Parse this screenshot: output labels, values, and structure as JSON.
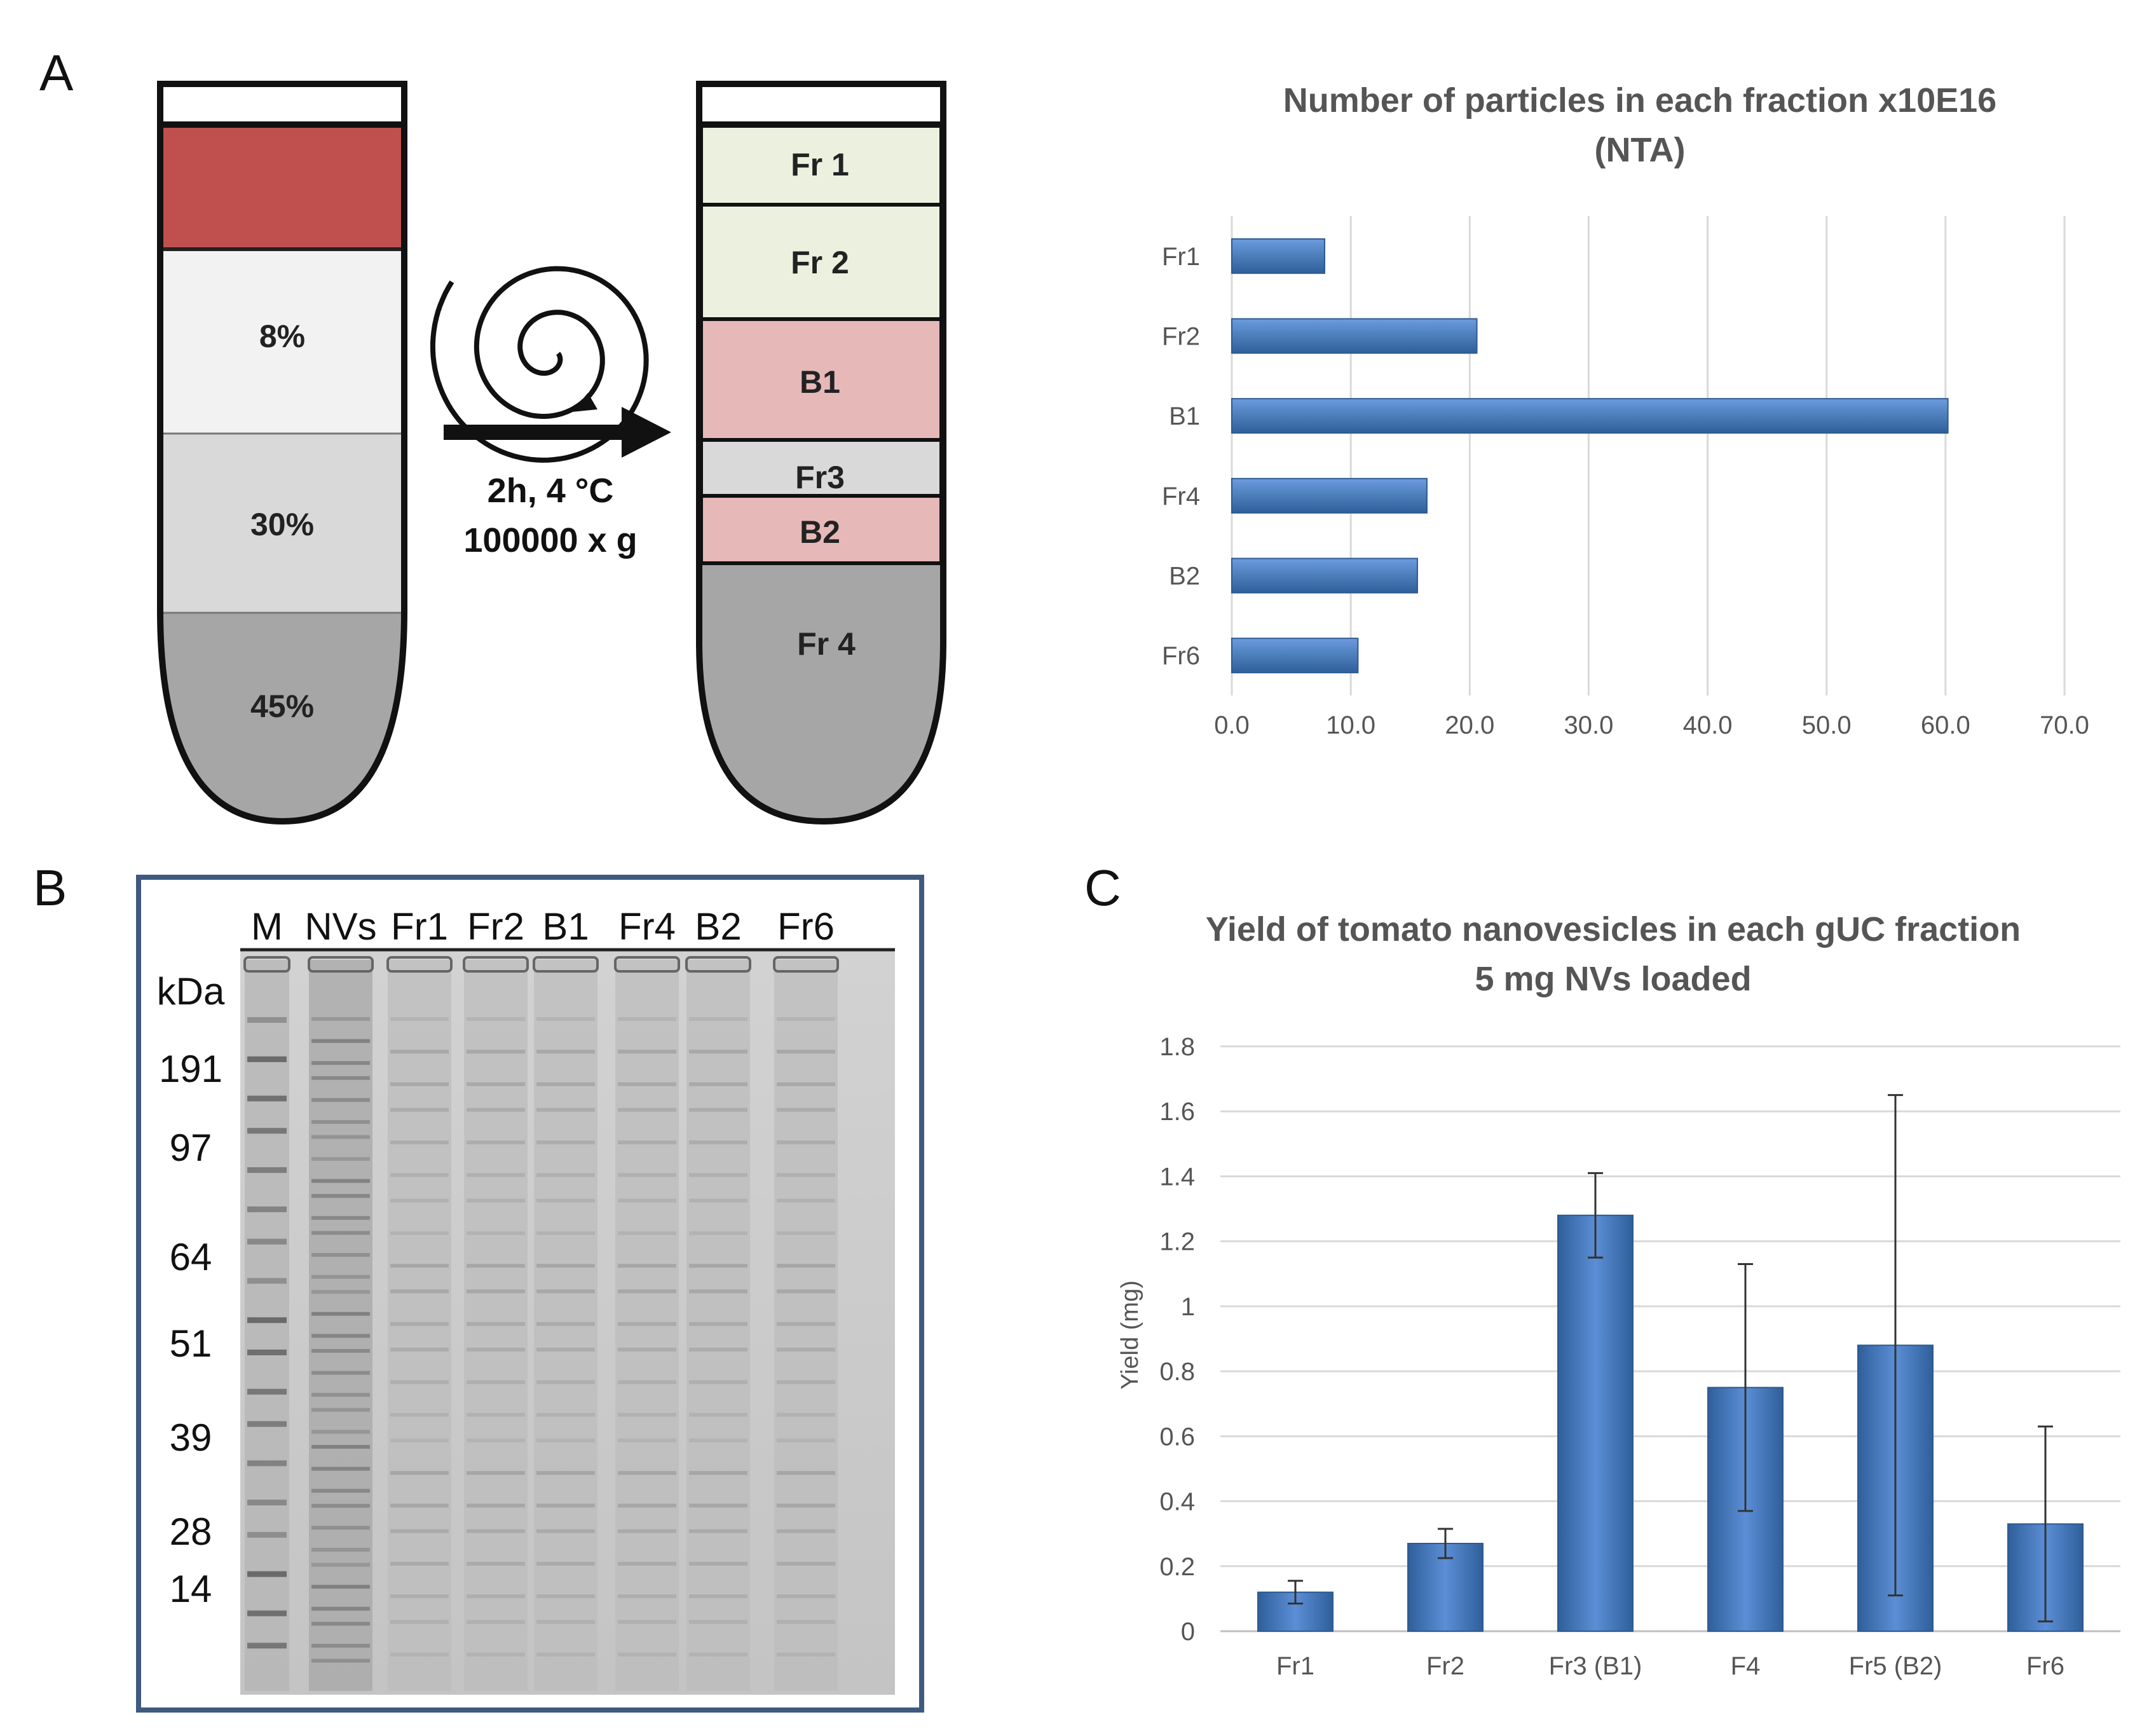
{
  "panel_a": {
    "letter": "A",
    "tube1": {
      "layers": [
        "8%",
        "30%",
        "45%"
      ]
    },
    "tube2": {
      "layers": [
        "Fr 1",
        "Fr 2",
        "B1",
        "Fr3",
        "B2",
        "Fr 4"
      ]
    },
    "conditions": [
      "2h, 4 °C",
      "100000 x g"
    ],
    "spiral_icon": "centrifuge-spiral-icon",
    "colors": {
      "sample": "#c0504d",
      "fraction": "#ebf1de",
      "band": "#e6b9b8",
      "fr3": "#d9d9d9",
      "g8": "#f2f2f2",
      "g30": "#d9d9d9",
      "g45": "#a6a6a6",
      "bar": "#4f81bd"
    }
  },
  "panel_b": {
    "letter": "B",
    "lanes": [
      "M",
      "NVs",
      "Fr1",
      "Fr2",
      "B1",
      "Fr4",
      "B2",
      "Fr6"
    ],
    "unit": "kDa",
    "markers": [
      "191",
      "97",
      "64",
      "51",
      "39",
      "28",
      "14"
    ]
  },
  "panel_c": {
    "letter": "C"
  },
  "chart_data": [
    {
      "type": "bar",
      "orientation": "horizontal",
      "title": "Number of particles in each fraction x10E16 (NTA)",
      "categories": [
        "Fr1",
        "Fr2",
        "B1",
        "Fr4",
        "B2",
        "Fr6"
      ],
      "values": [
        7.8,
        20.6,
        60.2,
        16.4,
        15.6,
        10.6
      ],
      "xlim": [
        0,
        70
      ],
      "ticks": [
        "0.0",
        "10.0",
        "20.0",
        "30.0",
        "40.0",
        "50.0",
        "60.0",
        "70.0"
      ],
      "grid": true
    },
    {
      "type": "bar",
      "title": "Yield of tomato nanovesicles in each gUC fraction 5 mg NVs loaded",
      "title_lines": [
        "Yield of tomato nanovesicles in each gUC fraction",
        "5 mg NVs loaded"
      ],
      "categories": [
        "Fr1",
        "Fr2",
        "Fr3 (B1)",
        "F4",
        "Fr5 (B2)",
        "Fr6"
      ],
      "values": [
        0.12,
        0.27,
        1.28,
        0.75,
        0.88,
        0.33
      ],
      "errors": [
        0.035,
        0.045,
        0.13,
        0.38,
        0.77,
        0.3
      ],
      "ylabel": "Yield (mg)",
      "ylim": [
        0,
        1.8
      ],
      "ticks": [
        "0",
        "0.2",
        "0.4",
        "0.6",
        "0.8",
        "1",
        "1.2",
        "1.4",
        "1.6",
        "1.8"
      ],
      "grid": true
    }
  ]
}
